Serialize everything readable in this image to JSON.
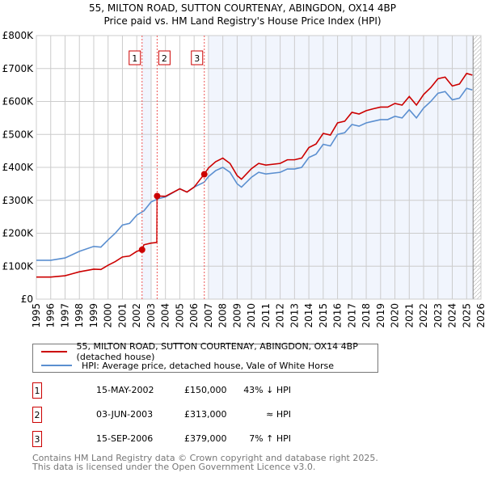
{
  "chart_data": {
    "type": "line",
    "title": "55, MILTON ROAD, SUTTON COURTENAY, ABINGDON, OX14 4BP",
    "subtitle": "Price paid vs. HM Land Registry's House Price Index (HPI)",
    "xlim": [
      1995,
      2026
    ],
    "ylim": [
      0,
      800000
    ],
    "y_ticks": [
      {
        "v": 0,
        "label": "£0"
      },
      {
        "v": 100000,
        "label": "£100K"
      },
      {
        "v": 200000,
        "label": "£200K"
      },
      {
        "v": 300000,
        "label": "£300K"
      },
      {
        "v": 400000,
        "label": "£400K"
      },
      {
        "v": 500000,
        "label": "£500K"
      },
      {
        "v": 600000,
        "label": "£600K"
      },
      {
        "v": 700000,
        "label": "£700K"
      },
      {
        "v": 800000,
        "label": "£800K"
      }
    ],
    "x_ticks": [
      "1995",
      "1996",
      "1997",
      "1998",
      "1999",
      "2000",
      "2001",
      "2002",
      "2003",
      "2004",
      "2005",
      "2006",
      "2007",
      "2008",
      "2009",
      "2010",
      "2011",
      "2012",
      "2013",
      "2014",
      "2015",
      "2016",
      "2017",
      "2018",
      "2019",
      "2020",
      "2021",
      "2022",
      "2023",
      "2024",
      "2025",
      "2026"
    ],
    "grid": true,
    "series": [
      {
        "name": "55, MILTON ROAD, SUTTON COURTENAY, ABINGDON, OX14 4BP (detached house)",
        "color": "#cc0000",
        "x": [
          1995,
          1996,
          1997,
          1997.5,
          1998,
          1999,
          1999.5,
          2000,
          2000.5,
          2001,
          2001.5,
          2002,
          2002.37,
          2002.5,
          2003,
          2003.4,
          2003.42,
          2004,
          2005,
          2005.5,
          2006,
          2006.7,
          2007,
          2007.5,
          2008,
          2008.5,
          2009,
          2009.3,
          2010,
          2010.5,
          2011,
          2012,
          2012.5,
          2013,
          2013.5,
          2014,
          2014.5,
          2015,
          2015.5,
          2016,
          2016.5,
          2017,
          2017.5,
          2018,
          2018.5,
          2019,
          2019.5,
          2020,
          2020.5,
          2021,
          2021.5,
          2022,
          2022.5,
          2023,
          2023.5,
          2024,
          2024.5,
          2025,
          2025.4
        ],
        "y": [
          67,
          67,
          71,
          77,
          83,
          91,
          90,
          103,
          114,
          128,
          131,
          145,
          150,
          165,
          170,
          172,
          313,
          312,
          335,
          325,
          340,
          379,
          398,
          417,
          428,
          412,
          375,
          364,
          396,
          412,
          407,
          412,
          423,
          423,
          428,
          460,
          471,
          503,
          498,
          535,
          540,
          567,
          562,
          572,
          578,
          583,
          583,
          594,
          589,
          615,
          589,
          621,
          642,
          669,
          674,
          647,
          653,
          685,
          680
        ]
      },
      {
        "name": "HPI: Average price, detached house, Vale of White Horse",
        "color": "#5b8fd0",
        "x": [
          1995,
          1996,
          1997,
          1997.5,
          1998,
          1999,
          1999.5,
          2000,
          2000.5,
          2001,
          2001.5,
          2002,
          2002.5,
          2003,
          2003.5,
          2004,
          2005,
          2005.5,
          2006,
          2006.7,
          2007,
          2007.5,
          2008,
          2008.5,
          2009,
          2009.3,
          2010,
          2010.5,
          2011,
          2012,
          2012.5,
          2013,
          2013.5,
          2014,
          2014.5,
          2015,
          2015.5,
          2016,
          2016.5,
          2017,
          2017.5,
          2018,
          2018.5,
          2019,
          2019.5,
          2020,
          2020.5,
          2021,
          2021.5,
          2022,
          2022.5,
          2023,
          2023.5,
          2024,
          2024.5,
          2025,
          2025.4
        ],
        "y": [
          118,
          118,
          125,
          135,
          145,
          160,
          158,
          180,
          200,
          225,
          230,
          255,
          268,
          295,
          305,
          310,
          335,
          325,
          340,
          355,
          372,
          390,
          400,
          385,
          350,
          340,
          370,
          385,
          380,
          385,
          395,
          395,
          400,
          430,
          440,
          470,
          465,
          500,
          505,
          530,
          525,
          535,
          540,
          545,
          545,
          555,
          550,
          575,
          550,
          580,
          600,
          625,
          630,
          605,
          610,
          640,
          635
        ]
      }
    ],
    "y_unit": "thousands GBP",
    "transactions": [
      {
        "label": "1",
        "x": 2002.37,
        "y": 150
      },
      {
        "label": "2",
        "x": 2003.42,
        "y": 313
      },
      {
        "label": "3",
        "x": 2006.71,
        "y": 379
      }
    ],
    "legend": "below"
  },
  "title": "55, MILTON ROAD, SUTTON COURTENAY, ABINGDON, OX14 4BP",
  "subtitle": "Price paid vs. HM Land Registry's House Price Index (HPI)",
  "legend": {
    "red": "55, MILTON ROAD, SUTTON COURTENAY, ABINGDON, OX14 4BP (detached house)",
    "blue": "HPI: Average price, detached house, Vale of White Horse"
  },
  "table": [
    {
      "n": "1",
      "date": "15-MAY-2002",
      "price": "£150,000",
      "hpi": "43% ↓ HPI"
    },
    {
      "n": "2",
      "date": "03-JUN-2003",
      "price": "£313,000",
      "hpi": "≈ HPI"
    },
    {
      "n": "3",
      "date": "15-SEP-2006",
      "price": "£379,000",
      "hpi": "7% ↑ HPI"
    }
  ],
  "footer": [
    "Contains HM Land Registry data © Crown copyright and database right 2025.",
    "This data is licensed under the Open Government Licence v3.0."
  ]
}
